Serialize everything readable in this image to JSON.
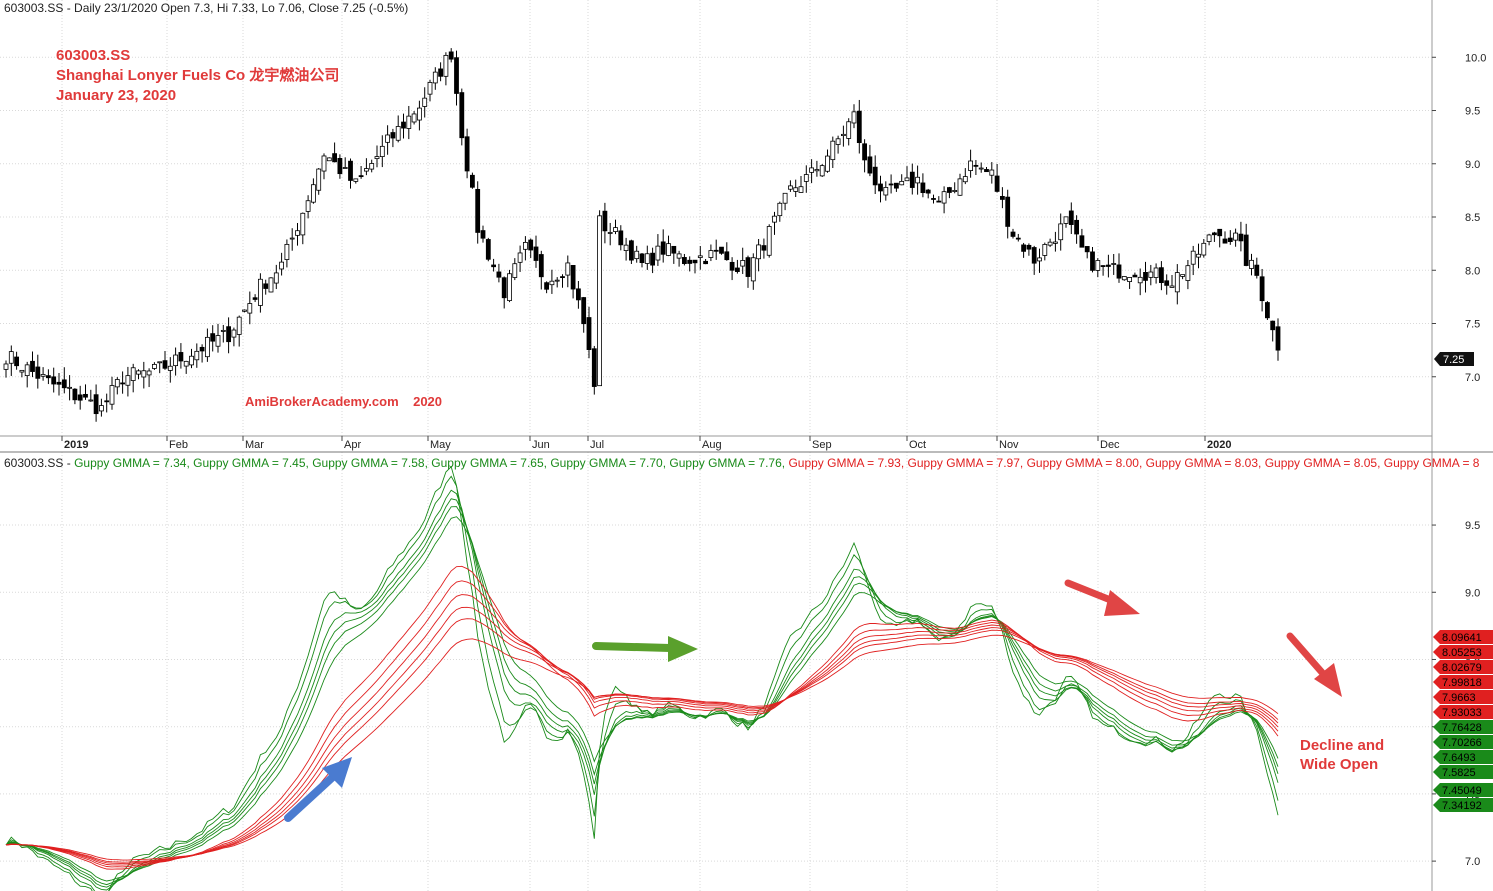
{
  "header_top": "603003.SS - Daily 23/1/2020 Open 7.3, Hi 7.33, Lo 7.06, Close 7.25 (-0.5%)",
  "title_lines": [
    "603003.SS",
    "Shanghai Lonyer Fuels Co  龙宇燃油公司",
    "January 23, 2020"
  ],
  "watermark": "AmiBrokerAcademy.com    2020",
  "annotation": [
    "Decline and",
    "Wide Open"
  ],
  "last_price_tag": "7.25",
  "gmma_header": {
    "prefix": "603003.SS - ",
    "items": [
      {
        "text": "Guppy GMMA = 7.34,",
        "color": "#1a8a1a"
      },
      {
        "text": "Guppy GMMA = 7.45,",
        "color": "#1a8a1a"
      },
      {
        "text": "Guppy GMMA = 7.58,",
        "color": "#1a8a1a"
      },
      {
        "text": "Guppy GMMA = 7.65,",
        "color": "#1a8a1a"
      },
      {
        "text": "Guppy GMMA = 7.70,",
        "color": "#1a8a1a"
      },
      {
        "text": "Guppy GMMA = 7.76,",
        "color": "#1a8a1a"
      },
      {
        "text": "Guppy GMMA = 7.93,",
        "color": "#e02020"
      },
      {
        "text": "Guppy GMMA = 7.97,",
        "color": "#e02020"
      },
      {
        "text": "Guppy GMMA = 8.00,",
        "color": "#e02020"
      },
      {
        "text": "Guppy GMMA = 8.03,",
        "color": "#e02020"
      },
      {
        "text": "Guppy GMMA = 8.05,",
        "color": "#e02020"
      },
      {
        "text": "Guppy GMMA = 8",
        "color": "#e02020"
      }
    ]
  },
  "gmma_tags_red": [
    "8.09641",
    "8.05253",
    "8.02679",
    "7.99818",
    "7.9663",
    "7.93033"
  ],
  "gmma_tags_green": [
    "7.76428",
    "7.70266",
    "7.6493",
    "7.5825",
    "7.45049",
    "7.34192"
  ],
  "colors": {
    "up": "#000000",
    "down": "#000000",
    "short_ma": "#1a8a1a",
    "long_ma": "#e02020",
    "title": "#e03a3a",
    "arrow_blue": "#4a7bd0",
    "arrow_green": "#5aa02c",
    "arrow_red": "#e04545"
  },
  "chart_data": [
    {
      "type": "candlestick",
      "title": "603003.SS - Daily 23/1/2020 Open 7.3, Hi 7.33, Lo 7.06, Close 7.25 (-0.5%)",
      "x_tick_labels": [
        "2019",
        "Feb",
        "Mar",
        "Apr",
        "May",
        "Jun",
        "Jul",
        "Aug",
        "Sep",
        "Oct",
        "Nov",
        "Dec",
        "2020"
      ],
      "y_ticks": [
        7.0,
        7.5,
        8.0,
        8.5,
        9.0,
        9.5,
        10.0
      ],
      "ylim": [
        6.5,
        10.35
      ],
      "grid": true,
      "last_value": 7.25,
      "close_path": [
        [
          0,
          7.2
        ],
        [
          8,
          6.95
        ],
        [
          14,
          6.8
        ],
        [
          18,
          6.7
        ],
        [
          22,
          7.0
        ],
        [
          28,
          7.05
        ],
        [
          36,
          7.25
        ],
        [
          42,
          7.4
        ],
        [
          48,
          7.85
        ],
        [
          52,
          8.05
        ],
        [
          56,
          8.55
        ],
        [
          60,
          9.1
        ],
        [
          66,
          8.8
        ],
        [
          72,
          9.2
        ],
        [
          78,
          9.55
        ],
        [
          84,
          10.05
        ],
        [
          86,
          9.3
        ],
        [
          89,
          8.4
        ],
        [
          94,
          7.8
        ],
        [
          98,
          8.2
        ],
        [
          102,
          7.9
        ],
        [
          106,
          8.05
        ],
        [
          109,
          7.5
        ],
        [
          111,
          6.95
        ],
        [
          112,
          8.45
        ],
        [
          116,
          8.3
        ],
        [
          120,
          8.05
        ],
        [
          124,
          8.2
        ],
        [
          128,
          8.1
        ],
        [
          134,
          8.15
        ],
        [
          140,
          8.0
        ],
        [
          144,
          8.35
        ],
        [
          148,
          8.75
        ],
        [
          152,
          8.9
        ],
        [
          156,
          9.15
        ],
        [
          160,
          9.45
        ],
        [
          162,
          9.0
        ],
        [
          166,
          8.7
        ],
        [
          172,
          8.85
        ],
        [
          176,
          8.6
        ],
        [
          182,
          9.0
        ],
        [
          186,
          8.9
        ],
        [
          190,
          8.35
        ],
        [
          194,
          8.1
        ],
        [
          200,
          8.45
        ],
        [
          204,
          8.1
        ],
        [
          208,
          8.0
        ],
        [
          214,
          8.0
        ],
        [
          220,
          7.9
        ],
        [
          224,
          8.1
        ],
        [
          228,
          8.35
        ],
        [
          232,
          8.3
        ],
        [
          234,
          8.1
        ],
        [
          236,
          7.95
        ],
        [
          238,
          7.6
        ],
        [
          240,
          7.25
        ]
      ]
    },
    {
      "type": "line",
      "title": "Guppy GMMA",
      "y_ticks": [
        7.0,
        7.5,
        8.0,
        8.5,
        9.0,
        9.5
      ],
      "ylim": [
        6.8,
        9.85
      ],
      "grid": true,
      "series": [
        {
          "name": "Guppy GMMA",
          "group": "short",
          "color": "#1a8a1a",
          "last": 7.34192
        },
        {
          "name": "Guppy GMMA",
          "group": "short",
          "color": "#1a8a1a",
          "last": 7.45049
        },
        {
          "name": "Guppy GMMA",
          "group": "short",
          "color": "#1a8a1a",
          "last": 7.5825
        },
        {
          "name": "Guppy GMMA",
          "group": "short",
          "color": "#1a8a1a",
          "last": 7.6493
        },
        {
          "name": "Guppy GMMA",
          "group": "short",
          "color": "#1a8a1a",
          "last": 7.70266
        },
        {
          "name": "Guppy GMMA",
          "group": "short",
          "color": "#1a8a1a",
          "last": 7.76428
        },
        {
          "name": "Guppy GMMA",
          "group": "long",
          "color": "#e02020",
          "last": 7.93033
        },
        {
          "name": "Guppy GMMA",
          "group": "long",
          "color": "#e02020",
          "last": 7.9663
        },
        {
          "name": "Guppy GMMA",
          "group": "long",
          "color": "#e02020",
          "last": 7.99818
        },
        {
          "name": "Guppy GMMA",
          "group": "long",
          "color": "#e02020",
          "last": 8.02679
        },
        {
          "name": "Guppy GMMA",
          "group": "long",
          "color": "#e02020",
          "last": 8.05253
        },
        {
          "name": "Guppy GMMA",
          "group": "long",
          "color": "#e02020",
          "last": 8.09641
        }
      ]
    }
  ]
}
